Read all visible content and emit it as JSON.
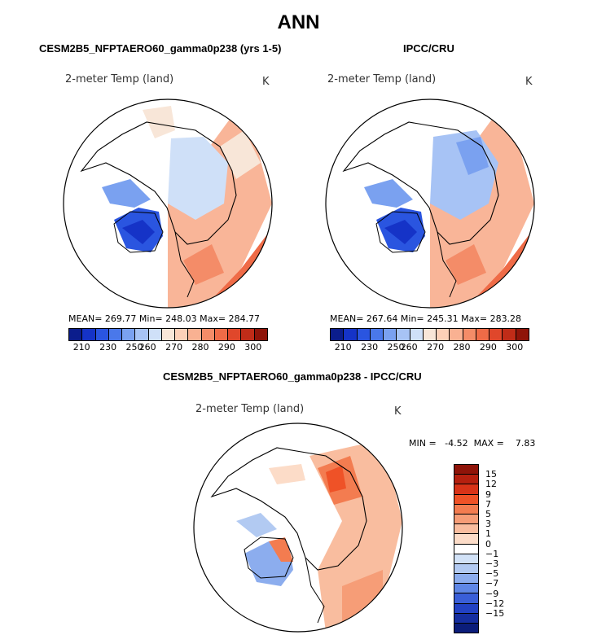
{
  "chart_data": [
    {
      "type": "heatmap",
      "panel": "model",
      "title": "ANN",
      "subtitle": "CESM2B5_NFPTAERO60_gamma0p238 (yrs 1-5)",
      "variable_label": "2-meter Temp (land)",
      "units": "K",
      "stats": {
        "mean": "269.77",
        "min": "248.03",
        "max": "284.77"
      },
      "stats_text": "MEAN=  269.77   Min=  248.03   Max=  284.77",
      "colorbar_ticks": [
        "210",
        "230",
        "250",
        "260",
        "270",
        "280",
        "290",
        "300"
      ],
      "colorbar_colors": [
        "#0b1d8c",
        "#1533c7",
        "#2a55e0",
        "#4a78ea",
        "#7aa1f0",
        "#a7c3f5",
        "#cfe0f8",
        "#f8e6d8",
        "#fcd0b8",
        "#f9b192",
        "#f48c68",
        "#ef6b47",
        "#e0472b",
        "#c02c18",
        "#8f1409"
      ]
    },
    {
      "type": "heatmap",
      "panel": "obs",
      "subtitle": "IPCC/CRU",
      "variable_label": "2-meter Temp (land)",
      "units": "K",
      "stats": {
        "mean": "267.64",
        "min": "245.31",
        "max": "283.28"
      },
      "stats_text": "MEAN=  267.64   Min=  245.31   Max=  283.28",
      "colorbar_ticks": [
        "210",
        "230",
        "250",
        "260",
        "270",
        "280",
        "290",
        "300"
      ]
    },
    {
      "type": "heatmap",
      "panel": "difference",
      "subtitle": "CESM2B5_NFPTAERO60_gamma0p238 - IPCC/CRU",
      "variable_label": "2-meter Temp (land)",
      "units": "K",
      "stats": {
        "min": "-4.52",
        "max": "7.83"
      },
      "stats_text": "MIN =   -4.52  MAX =    7.83",
      "colorbar_ticks": [
        "15",
        "12",
        "9",
        "7",
        "5",
        "3",
        "1",
        "0",
        "−1",
        "−3",
        "−5",
        "−7",
        "−9",
        "−12",
        "−15"
      ],
      "colorbar_colors": [
        "#8f1409",
        "#b5200f",
        "#d83318",
        "#ef5227",
        "#f37c50",
        "#f69d77",
        "#f9bd9f",
        "#fcdcc8",
        "#ffffff",
        "#d2e2f7",
        "#b2caf2",
        "#8cadee",
        "#5f87e6",
        "#3a5fd8",
        "#2242c4",
        "#152ea0",
        "#0b1d7a"
      ]
    }
  ]
}
